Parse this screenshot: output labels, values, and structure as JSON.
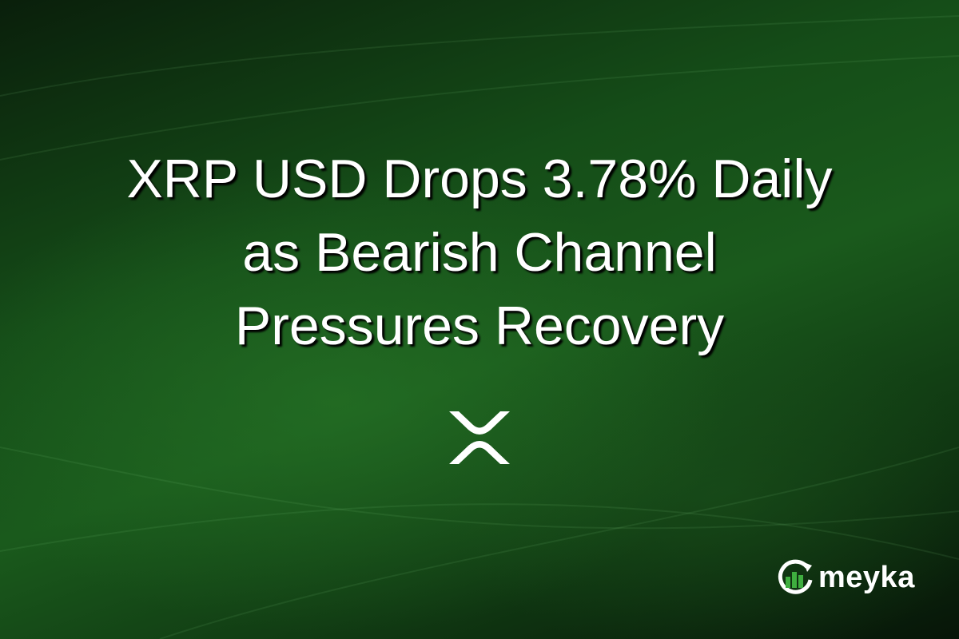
{
  "headline": {
    "lines": [
      "XRP USD Drops 3.78% Daily",
      "as Bearish Channel",
      "Pressures Recovery"
    ]
  },
  "icons": {
    "coin": "xrp-logo-icon",
    "brand": "meyka-logo-icon"
  },
  "brand": {
    "name": "meyka",
    "accent": "#3fae3f"
  },
  "colors": {
    "background": "#154d18",
    "text": "#ffffff"
  }
}
